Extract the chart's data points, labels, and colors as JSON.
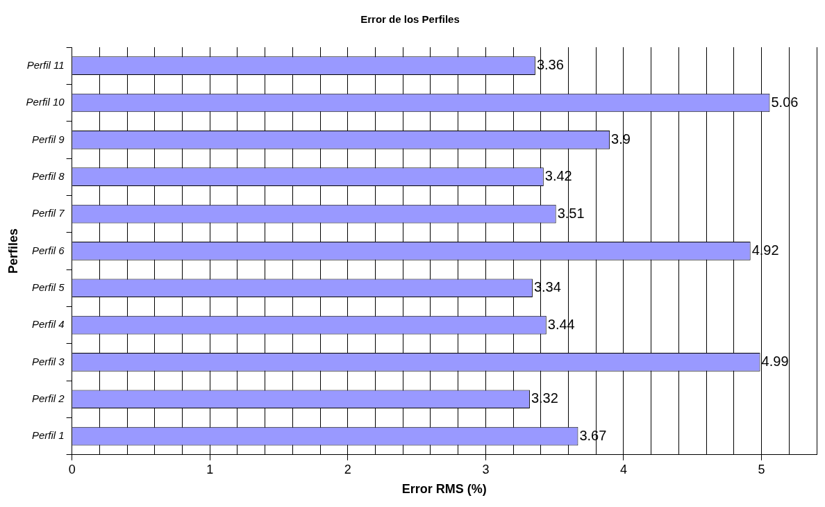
{
  "chart_data": {
    "type": "bar",
    "orientation": "horizontal",
    "title": "Error de los Perfiles",
    "xlabel": "Error RMS (%)",
    "ylabel": "Perfiles",
    "categories": [
      "Perfil 11",
      "Perfil 10",
      "Perfil 9",
      "Perfil 8",
      "Perfil 7",
      "Perfil 6",
      "Perfil 5",
      "Perfil 4",
      "Perfil 3",
      "Perfil 2",
      "Perfil 1"
    ],
    "values": [
      3.36,
      5.06,
      3.9,
      3.42,
      3.51,
      4.92,
      3.34,
      3.44,
      4.99,
      3.32,
      3.67
    ],
    "color": "#9999ff",
    "xlim": [
      0,
      5.4
    ],
    "xticks": [
      0,
      {
        "value": 0.2,
        "label": null
      },
      {
        "value": 0.4,
        "label": null
      },
      {
        "value": 0.6,
        "label": null
      },
      {
        "value": 0.8,
        "label": null
      },
      1,
      {
        "value": 1.2,
        "label": null
      },
      {
        "value": 1.4,
        "label": null
      },
      {
        "value": 1.6,
        "label": null
      },
      {
        "value": 1.8,
        "label": null
      },
      2,
      {
        "value": 2.2,
        "label": null
      },
      {
        "value": 2.4,
        "label": null
      },
      {
        "value": 2.6,
        "label": null
      },
      {
        "value": 2.8,
        "label": null
      },
      3,
      {
        "value": 3.2,
        "label": null
      },
      {
        "value": 3.4,
        "label": null
      },
      {
        "value": 3.6,
        "label": null
      },
      {
        "value": 3.8,
        "label": null
      },
      4,
      {
        "value": 4.2,
        "label": null
      },
      {
        "value": 4.4,
        "label": null
      },
      {
        "value": 4.6,
        "label": null
      },
      {
        "value": 4.8,
        "label": null
      },
      5,
      {
        "value": 5.2,
        "label": null
      },
      {
        "value": 5.4,
        "label": null
      }
    ],
    "grid": "x",
    "legend": false,
    "data_labels": true
  }
}
